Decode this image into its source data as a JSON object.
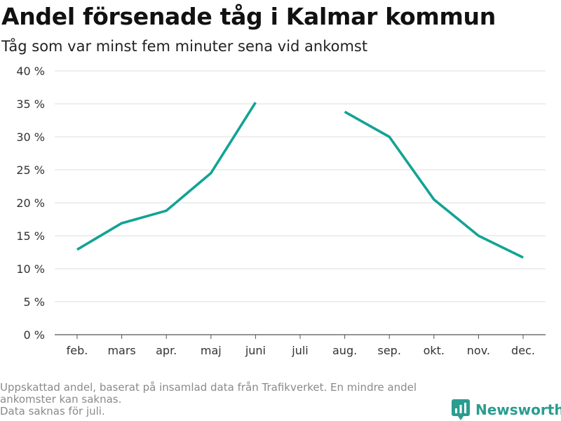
{
  "header": {
    "title": "Andel försenade tåg i Kalmar kommun",
    "subtitle": "Tåg som var minst fem minuter sena vid ankomst"
  },
  "chart_data": {
    "type": "line",
    "categories": [
      "feb.",
      "mars",
      "apr.",
      "maj",
      "juni",
      "juli",
      "aug.",
      "sep.",
      "okt.",
      "nov.",
      "dec."
    ],
    "series": [
      {
        "values": [
          12.9,
          16.9,
          18.8,
          24.5,
          35.2,
          null,
          33.8,
          30.0,
          20.5,
          15.0,
          11.7
        ]
      }
    ],
    "yticks": [
      "0 %",
      "5 %",
      "10 %",
      "15 %",
      "20 %",
      "25 %",
      "30 %",
      "35 %",
      "40 %"
    ],
    "ylim": [
      0,
      40
    ],
    "grid": true,
    "line_color": "#12a394"
  },
  "footnote": {
    "lines": [
      "Uppskattad andel, baserat på insamlad data från Trafikverket. En mindre andel",
      "ankomster kan saknas.",
      "Data saknas för juli."
    ]
  },
  "brand": {
    "name": "Newsworthy",
    "icon": "newsworthy-logo-icon",
    "color": "#2a9d8f"
  }
}
